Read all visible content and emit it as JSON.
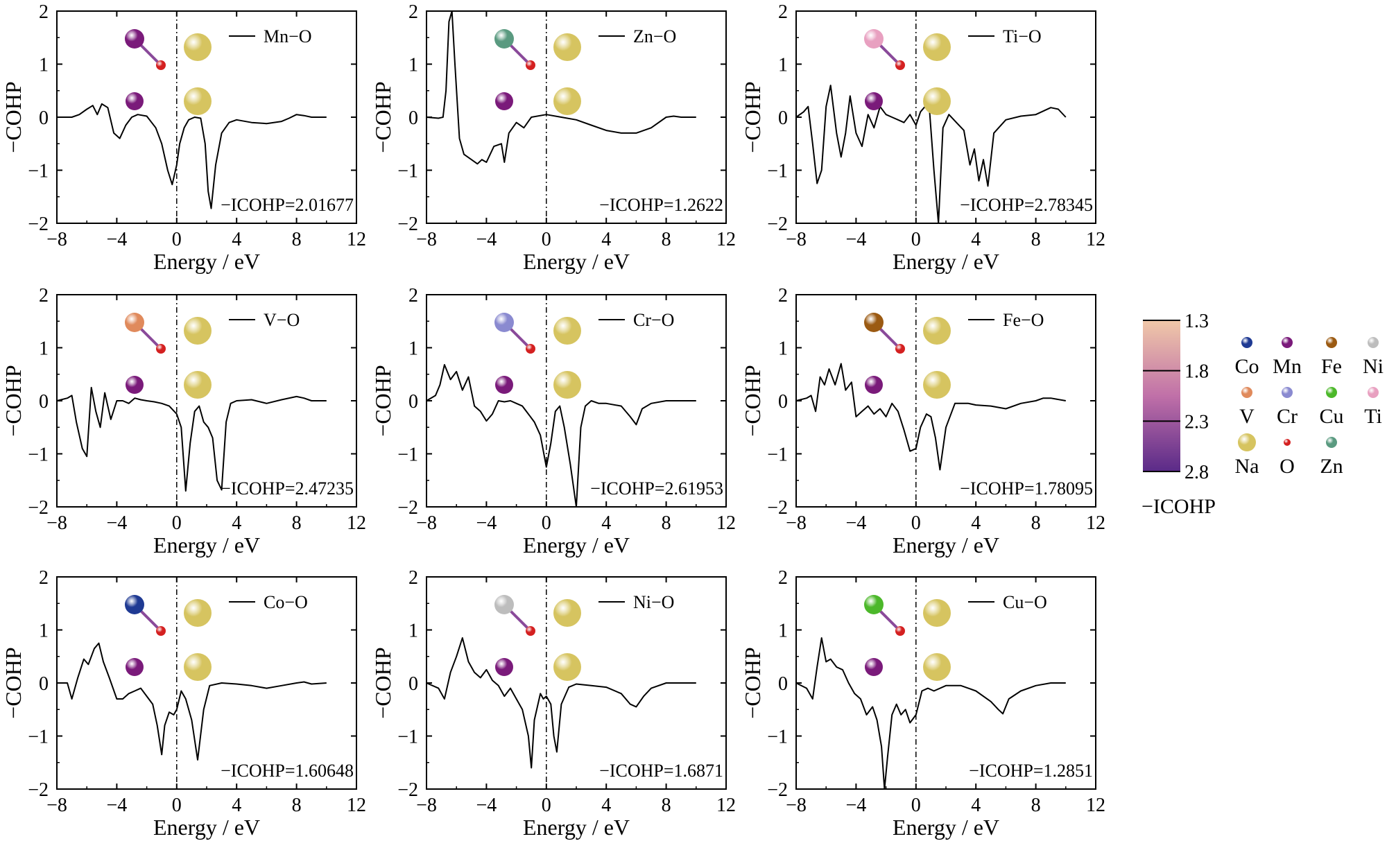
{
  "figure": {
    "colors": {
      "Co": "#1f3a93",
      "Mn": "#7a1a7a",
      "Fe": "#9b5a12",
      "Ni": "#bdbdbd",
      "V": "#e08a5c",
      "Cr": "#8a8ad0",
      "Cu": "#4cb82a",
      "Ti": "#e8a0c0",
      "Na": "#d6c460",
      "O": "#d42020",
      "Zn": "#5a9a80"
    },
    "colorbar": {
      "label": "−ICOHP",
      "ticks": [
        "1.3",
        "1.8",
        "2.3",
        "2.8"
      ],
      "values": [
        1.3,
        1.8,
        2.3,
        2.8
      ],
      "range": [
        1.3,
        2.8
      ],
      "color_low": "#f0c8a8",
      "color_mid": "#c070a8",
      "color_high": "#5a2a88"
    },
    "legend_elements": [
      {
        "symbol": "Co",
        "color_key": "Co"
      },
      {
        "symbol": "Mn",
        "color_key": "Mn"
      },
      {
        "symbol": "Fe",
        "color_key": "Fe"
      },
      {
        "symbol": "Ni",
        "color_key": "Ni"
      },
      {
        "symbol": "V",
        "color_key": "V"
      },
      {
        "symbol": "Cr",
        "color_key": "Cr"
      },
      {
        "symbol": "Cu",
        "color_key": "Cu"
      },
      {
        "symbol": "Ti",
        "color_key": "Ti"
      },
      {
        "symbol": "Na",
        "color_key": "Na"
      },
      {
        "symbol": "O",
        "color_key": "O"
      },
      {
        "symbol": "Zn",
        "color_key": "Zn"
      }
    ]
  },
  "chart_data": [
    {
      "type": "line",
      "series_label": "Mn−O",
      "metal": "Mn",
      "annotation": "−ICOHP=2.01677",
      "xlabel": "Energy / eV",
      "ylabel": "−COHP",
      "xlim": [
        -8,
        12
      ],
      "ylim": [
        -2,
        2
      ],
      "xticks": [
        "−8",
        "−4",
        "0",
        "4",
        "8",
        "12"
      ],
      "yticks": [
        "−2",
        "−1",
        "0",
        "1",
        "2"
      ],
      "x": [
        -8,
        -7,
        -6.5,
        -6,
        -5.6,
        -5.3,
        -5,
        -4.6,
        -4.2,
        -3.8,
        -3.4,
        -3,
        -2.6,
        -2,
        -1.4,
        -1,
        -0.6,
        -0.3,
        0,
        0.2,
        0.5,
        0.8,
        1.2,
        1.6,
        1.9,
        2.1,
        2.3,
        2.6,
        3,
        3.5,
        4,
        5,
        6,
        7,
        7.5,
        8,
        8.5,
        9,
        10
      ],
      "y": [
        0,
        0,
        0.05,
        0.15,
        0.22,
        0.05,
        0.25,
        0.18,
        -0.3,
        -0.4,
        -0.15,
        0,
        0.05,
        0.02,
        -0.2,
        -0.5,
        -1.0,
        -1.27,
        -0.9,
        -0.5,
        -0.2,
        -0.05,
        0,
        -0.02,
        -0.5,
        -1.4,
        -1.72,
        -0.9,
        -0.3,
        -0.1,
        -0.05,
        -0.1,
        -0.12,
        -0.08,
        -0.02,
        0.05,
        0.03,
        0,
        0
      ]
    },
    {
      "type": "line",
      "series_label": "Zn−O",
      "metal": "Zn",
      "annotation": "−ICOHP=1.2622",
      "xlabel": "Energy / eV",
      "ylabel": "−COHP",
      "xlim": [
        -8,
        12
      ],
      "ylim": [
        -2,
        2
      ],
      "xticks": [
        "−8",
        "−4",
        "0",
        "4",
        "8",
        "12"
      ],
      "yticks": [
        "−2",
        "−1",
        "0",
        "1",
        "2"
      ],
      "x": [
        -8,
        -7.2,
        -6.9,
        -6.7,
        -6.5,
        -6.3,
        -6.1,
        -5.8,
        -5.5,
        -5,
        -4.6,
        -4.3,
        -4,
        -3.5,
        -3,
        -2.8,
        -2.5,
        -2,
        -1.5,
        -1,
        0,
        1,
        2,
        3,
        4,
        5,
        6,
        7,
        8,
        8.5,
        9,
        10
      ],
      "y": [
        0,
        -0.02,
        0,
        0.5,
        1.8,
        2.0,
        1.0,
        -0.4,
        -0.7,
        -0.8,
        -0.88,
        -0.8,
        -0.85,
        -0.55,
        -0.5,
        -0.85,
        -0.3,
        -0.1,
        -0.2,
        0,
        0.05,
        0,
        -0.05,
        -0.15,
        -0.25,
        -0.3,
        -0.3,
        -0.2,
        0,
        0.02,
        0,
        0
      ]
    },
    {
      "type": "line",
      "series_label": "Ti−O",
      "metal": "Ti",
      "annotation": "−ICOHP=2.78345",
      "xlabel": "Energy / eV",
      "ylabel": "−COHP",
      "xlim": [
        -8,
        12
      ],
      "ylim": [
        -2,
        2
      ],
      "xticks": [
        "−8",
        "−4",
        "0",
        "4",
        "8",
        "12"
      ],
      "yticks": [
        "−2",
        "−1",
        "0",
        "1",
        "2"
      ],
      "x": [
        -8,
        -7.5,
        -7.2,
        -6.9,
        -6.6,
        -6.3,
        -6,
        -5.7,
        -5.3,
        -5,
        -4.7,
        -4.4,
        -4,
        -3.6,
        -3.2,
        -2.8,
        -2.4,
        -2,
        -1.6,
        -1.2,
        -0.8,
        -0.4,
        0,
        0.3,
        0.6,
        0.9,
        1.2,
        1.5,
        1.8,
        2.2,
        2.7,
        3.2,
        3.6,
        3.9,
        4.2,
        4.5,
        4.8,
        5.2,
        6,
        7,
        8,
        9,
        9.5,
        10
      ],
      "y": [
        0,
        0.1,
        0.2,
        -0.5,
        -1.25,
        -1.0,
        0.2,
        0.6,
        -0.3,
        -0.75,
        -0.3,
        0.4,
        -0.3,
        -0.55,
        0.05,
        -0.2,
        0.2,
        0.05,
        0,
        -0.05,
        -0.1,
        0.05,
        -0.15,
        0.1,
        0.2,
        0.15,
        -1.0,
        -2.0,
        -0.2,
        0.05,
        -0.1,
        -0.25,
        -0.9,
        -0.6,
        -1.2,
        -0.8,
        -1.3,
        -0.3,
        -0.05,
        0.02,
        0.05,
        0.18,
        0.15,
        0
      ]
    },
    {
      "type": "line",
      "series_label": "V−O",
      "metal": "V",
      "annotation": "−ICOHP=2.47235",
      "xlabel": "Energy / eV",
      "ylabel": "−COHP",
      "xlim": [
        -8,
        12
      ],
      "ylim": [
        -2,
        2
      ],
      "xticks": [
        "−8",
        "−4",
        "0",
        "4",
        "8",
        "12"
      ],
      "yticks": [
        "−2",
        "−1",
        "0",
        "1",
        "2"
      ],
      "x": [
        -8,
        -7.3,
        -7,
        -6.7,
        -6.3,
        -6,
        -5.7,
        -5.4,
        -5.1,
        -4.8,
        -4.4,
        -4,
        -3.6,
        -3.2,
        -2.8,
        -2.4,
        -2,
        -1.5,
        -1,
        -0.5,
        0,
        0.3,
        0.6,
        0.9,
        1.2,
        1.5,
        1.8,
        2.1,
        2.4,
        2.7,
        3,
        3.3,
        3.6,
        4,
        5,
        6,
        7,
        8,
        8.5,
        9,
        10
      ],
      "y": [
        0,
        0.05,
        0.1,
        -0.4,
        -0.9,
        -1.05,
        0.25,
        -0.2,
        -0.5,
        0.15,
        -0.35,
        0,
        0,
        -0.05,
        0.05,
        0.02,
        0,
        -0.02,
        -0.05,
        -0.1,
        -0.25,
        -0.5,
        -1.7,
        -0.8,
        -0.2,
        -0.1,
        -0.4,
        -0.5,
        -0.7,
        -1.5,
        -1.68,
        -0.4,
        -0.05,
        0,
        0.02,
        -0.05,
        0.02,
        0.08,
        0.05,
        0,
        0
      ]
    },
    {
      "type": "line",
      "series_label": "Cr−O",
      "metal": "Cr",
      "annotation": "−ICOHP=2.61953",
      "xlabel": "Energy / eV",
      "ylabel": "−COHP",
      "xlim": [
        -8,
        12
      ],
      "ylim": [
        -2,
        2
      ],
      "xticks": [
        "−8",
        "−4",
        "0",
        "4",
        "8",
        "12"
      ],
      "yticks": [
        "−2",
        "−1",
        "0",
        "1",
        "2"
      ],
      "x": [
        -8,
        -7.4,
        -7.1,
        -6.8,
        -6.4,
        -6,
        -5.6,
        -5.2,
        -4.8,
        -4.4,
        -4,
        -3.6,
        -3.2,
        -2.8,
        -2.4,
        -2,
        -1.6,
        -1.2,
        -0.8,
        -0.4,
        0,
        0.3,
        0.6,
        0.9,
        1.2,
        1.6,
        2,
        2.3,
        2.6,
        3,
        3.5,
        4,
        5,
        5.6,
        6,
        6.4,
        7,
        8,
        9,
        10
      ],
      "y": [
        0,
        0.1,
        0.3,
        0.68,
        0.4,
        0.55,
        0.2,
        0.45,
        -0.1,
        -0.2,
        -0.38,
        -0.25,
        0,
        -0.02,
        0,
        -0.05,
        -0.1,
        -0.25,
        -0.4,
        -0.65,
        -1.25,
        -0.8,
        -0.2,
        -0.1,
        -0.5,
        -1.2,
        -2.0,
        -0.5,
        -0.1,
        0,
        -0.05,
        -0.05,
        -0.1,
        -0.3,
        -0.45,
        -0.15,
        -0.05,
        0,
        0,
        0
      ]
    },
    {
      "type": "line",
      "series_label": "Fe−O",
      "metal": "Fe",
      "annotation": "−ICOHP=1.78095",
      "xlabel": "Energy / eV",
      "ylabel": "−COHP",
      "xlim": [
        -8,
        12
      ],
      "ylim": [
        -2,
        2
      ],
      "xticks": [
        "−8",
        "−4",
        "0",
        "4",
        "8",
        "12"
      ],
      "yticks": [
        "−2",
        "−1",
        "0",
        "1",
        "2"
      ],
      "x": [
        -8,
        -7.3,
        -7,
        -6.7,
        -6.4,
        -6.1,
        -5.8,
        -5.4,
        -5,
        -4.7,
        -4.3,
        -4,
        -3.6,
        -3.2,
        -2.8,
        -2.4,
        -2,
        -1.6,
        -1.2,
        -0.8,
        -0.4,
        0,
        0.3,
        0.7,
        1,
        1.3,
        1.6,
        2,
        2.6,
        3.5,
        4,
        5,
        6,
        7,
        8,
        8.5,
        9,
        10
      ],
      "y": [
        0,
        0.05,
        0.1,
        -0.2,
        0.45,
        0.3,
        0.6,
        0.3,
        0.7,
        0.2,
        0.35,
        -0.3,
        -0.2,
        -0.1,
        -0.25,
        -0.15,
        -0.3,
        -0.05,
        -0.2,
        -0.55,
        -0.95,
        -0.9,
        -0.5,
        -0.25,
        -0.3,
        -0.7,
        -1.3,
        -0.5,
        -0.05,
        -0.05,
        -0.08,
        -0.1,
        -0.15,
        -0.05,
        0,
        0.05,
        0.05,
        0
      ]
    },
    {
      "type": "line",
      "series_label": "Co−O",
      "metal": "Co",
      "annotation": "−ICOHP=1.60648",
      "xlabel": "Energy / eV",
      "ylabel": "−COHP",
      "xlim": [
        -8,
        12
      ],
      "ylim": [
        -2,
        2
      ],
      "xticks": [
        "−8",
        "−4",
        "0",
        "4",
        "8",
        "12"
      ],
      "yticks": [
        "−2",
        "−1",
        "0",
        "1",
        "2"
      ],
      "x": [
        -8,
        -7.3,
        -7,
        -6.6,
        -6.2,
        -5.9,
        -5.5,
        -5.2,
        -4.9,
        -4.5,
        -4,
        -3.6,
        -3.2,
        -2.8,
        -2.4,
        -2,
        -1.6,
        -1.3,
        -1,
        -0.8,
        -0.5,
        -0.2,
        0,
        0.3,
        0.6,
        1,
        1.4,
        1.8,
        2.2,
        3,
        4,
        5,
        6,
        7,
        8,
        8.5,
        9,
        10
      ],
      "y": [
        0,
        0,
        -0.3,
        0.1,
        0.45,
        0.35,
        0.65,
        0.75,
        0.4,
        0.1,
        -0.3,
        -0.3,
        -0.2,
        -0.15,
        -0.1,
        -0.25,
        -0.4,
        -0.8,
        -1.35,
        -0.8,
        -0.55,
        -0.6,
        -0.5,
        -0.15,
        -0.3,
        -0.7,
        -1.45,
        -0.5,
        -0.05,
        0,
        -0.02,
        -0.05,
        -0.1,
        -0.05,
        0,
        0.02,
        -0.02,
        0
      ]
    },
    {
      "type": "line",
      "series_label": "Ni−O",
      "metal": "Ni",
      "annotation": "−ICOHP=1.6871",
      "xlabel": "Energy / eV",
      "ylabel": "−COHP",
      "xlim": [
        -8,
        12
      ],
      "ylim": [
        -2,
        2
      ],
      "xticks": [
        "−8",
        "−4",
        "0",
        "4",
        "8",
        "12"
      ],
      "yticks": [
        "−2",
        "−1",
        "0",
        "1",
        "2"
      ],
      "x": [
        -8,
        -7.2,
        -6.8,
        -6.4,
        -6,
        -5.6,
        -5.2,
        -4.8,
        -4.4,
        -4,
        -3.6,
        -3.2,
        -2.8,
        -2.4,
        -2,
        -1.6,
        -1.2,
        -1,
        -0.8,
        -0.4,
        -0.2,
        0,
        0.3,
        0.5,
        0.7,
        1,
        1.5,
        2,
        3,
        4,
        5,
        5.6,
        6,
        6.5,
        7,
        8,
        9,
        10
      ],
      "y": [
        0,
        -0.1,
        -0.3,
        0.2,
        0.5,
        0.85,
        0.4,
        0.2,
        0.1,
        0.25,
        0.05,
        -0.05,
        -0.25,
        -0.1,
        -0.3,
        -0.5,
        -1.0,
        -1.6,
        -0.7,
        -0.2,
        -0.3,
        -0.25,
        -0.4,
        -1.0,
        -1.3,
        -0.4,
        -0.08,
        -0.02,
        -0.05,
        -0.08,
        -0.2,
        -0.4,
        -0.45,
        -0.25,
        -0.1,
        0,
        0,
        0
      ]
    },
    {
      "type": "line",
      "series_label": "Cu−O",
      "metal": "Cu",
      "annotation": "−ICOHP=1.2851",
      "xlabel": "Energy / eV",
      "ylabel": "−COHP",
      "xlim": [
        -8,
        12
      ],
      "ylim": [
        -2,
        2
      ],
      "xticks": [
        "−8",
        "−4",
        "0",
        "4",
        "8",
        "12"
      ],
      "yticks": [
        "−2",
        "−1",
        "0",
        "1",
        "2"
      ],
      "x": [
        -8,
        -7.3,
        -6.9,
        -6.6,
        -6.3,
        -6,
        -5.7,
        -5.3,
        -4.9,
        -4.5,
        -4.1,
        -3.7,
        -3.3,
        -2.9,
        -2.6,
        -2.3,
        -2.1,
        -1.9,
        -1.6,
        -1.3,
        -1,
        -0.7,
        -0.4,
        0,
        0.4,
        0.8,
        1.2,
        2,
        3,
        4,
        5,
        5.5,
        5.8,
        6.2,
        7,
        8,
        9,
        10
      ],
      "y": [
        0,
        -0.1,
        -0.3,
        0.3,
        0.85,
        0.4,
        0.45,
        0.3,
        0.25,
        0,
        -0.2,
        -0.3,
        -0.6,
        -0.45,
        -0.7,
        -1.2,
        -2.0,
        -1.4,
        -0.6,
        -0.4,
        -0.6,
        -0.5,
        -0.75,
        -0.6,
        -0.15,
        -0.1,
        -0.15,
        -0.05,
        -0.05,
        -0.15,
        -0.35,
        -0.5,
        -0.58,
        -0.3,
        -0.15,
        -0.05,
        0,
        0
      ]
    }
  ]
}
